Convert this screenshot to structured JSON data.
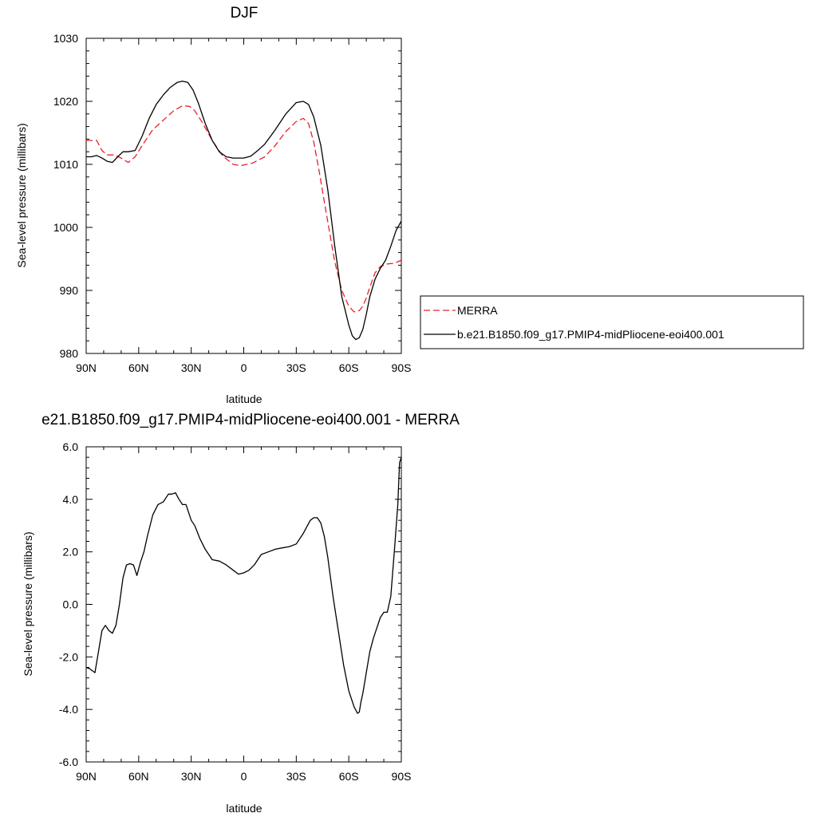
{
  "chart_data": [
    {
      "type": "line",
      "title": "DJF",
      "xlabel": "latitude",
      "ylabel": "Sea-level pressure (millibars)",
      "xlim": [
        90,
        -90
      ],
      "ylim": [
        980,
        1030
      ],
      "x_ticks": [
        90,
        60,
        30,
        0,
        -30,
        -60,
        -90
      ],
      "x_tick_labels": [
        "90N",
        "60N",
        "30N",
        "0",
        "30S",
        "60S",
        "90S"
      ],
      "y_ticks": [
        980,
        990,
        1000,
        1010,
        1020,
        1030
      ],
      "y_tick_labels": [
        "980",
        "990",
        "1000",
        "1010",
        "1020",
        "1030"
      ],
      "legend_position": "right",
      "series": [
        {
          "name": "MERRA",
          "color": "#e8212a",
          "dash": "dashed",
          "x": [
            90,
            84,
            81,
            78,
            74,
            70,
            66,
            62,
            58,
            52,
            46,
            40,
            35,
            31,
            28,
            24,
            18,
            12,
            6,
            2,
            0,
            -5,
            -12,
            -18,
            -24,
            -30,
            -34,
            -37,
            -40,
            -43,
            -47,
            -52,
            -56,
            -60,
            -63,
            -66,
            -68,
            -70,
            -72,
            -75,
            -78,
            -82,
            -86,
            -90
          ],
          "y": [
            1013.8,
            1013.8,
            1012.2,
            1011.5,
            1011.5,
            1011.0,
            1010.3,
            1011.2,
            1013.0,
            1015.5,
            1017.0,
            1018.5,
            1019.3,
            1019.2,
            1018.5,
            1016.8,
            1013.8,
            1011.3,
            1010.0,
            1009.8,
            1009.9,
            1010.2,
            1011.2,
            1013.0,
            1015.2,
            1016.8,
            1017.3,
            1016.5,
            1013.5,
            1009.0,
            1002.5,
            994.5,
            990.0,
            987.5,
            986.6,
            986.8,
            987.5,
            988.8,
            990.5,
            992.8,
            993.8,
            994.2,
            994.3,
            994.8
          ]
        },
        {
          "name": "b.e21.B1850.f09_g17.PMIP4-midPliocene-eoi400.001",
          "color": "#000000",
          "dash": "solid",
          "x": [
            90,
            87,
            84,
            81,
            78,
            75,
            72,
            69,
            66,
            62,
            58,
            54,
            50,
            46,
            42,
            38,
            35,
            32,
            29,
            26,
            22,
            18,
            14,
            10,
            6,
            3,
            0,
            -4,
            -8,
            -12,
            -18,
            -24,
            -30,
            -34,
            -37,
            -40,
            -44,
            -48,
            -52,
            -56,
            -60,
            -62,
            -64,
            -66,
            -68,
            -70,
            -72,
            -75,
            -78,
            -81,
            -84,
            -87,
            -90
          ],
          "y": [
            1011.2,
            1011.2,
            1011.4,
            1011.0,
            1010.5,
            1010.3,
            1011.2,
            1012.0,
            1012.0,
            1012.2,
            1014.5,
            1017.3,
            1019.5,
            1021.0,
            1022.2,
            1023.0,
            1023.2,
            1023.0,
            1021.8,
            1019.8,
            1016.5,
            1013.8,
            1012.0,
            1011.2,
            1011.0,
            1011.0,
            1011.0,
            1011.3,
            1012.2,
            1013.2,
            1015.5,
            1018.0,
            1019.8,
            1020.0,
            1019.5,
            1017.5,
            1013.0,
            1006.0,
            997.0,
            989.0,
            984.5,
            982.8,
            982.2,
            982.5,
            983.8,
            986.2,
            989.0,
            991.8,
            993.5,
            994.8,
            997.0,
            999.5,
            1001.0
          ]
        }
      ]
    },
    {
      "type": "line",
      "title": "e21.B1850.f09_g17.PMIP4-midPliocene-eoi400.001 - MERRA",
      "xlabel": "latitude",
      "ylabel": "Sea-level pressure (millibars)",
      "xlim": [
        90,
        -90
      ],
      "ylim": [
        -6.0,
        6.0
      ],
      "x_ticks": [
        90,
        60,
        30,
        0,
        -30,
        -60,
        -90
      ],
      "x_tick_labels": [
        "90N",
        "60N",
        "30N",
        "0",
        "30S",
        "60S",
        "90S"
      ],
      "y_ticks": [
        -6,
        -4,
        -2,
        0,
        2,
        4,
        6
      ],
      "y_tick_labels": [
        "-6.0",
        "-4.0",
        "-2.0",
        "0.0",
        "2.0",
        "4.0",
        "6.0"
      ],
      "series": [
        {
          "color": "#000000",
          "dash": "solid",
          "x": [
            90,
            88,
            85,
            83,
            81,
            79,
            77,
            75,
            73,
            71,
            69,
            67,
            65,
            63,
            61,
            59,
            57,
            55,
            52,
            49,
            46,
            43,
            41,
            39,
            37,
            35,
            33,
            30,
            28,
            25,
            22,
            18,
            14,
            10,
            6,
            3,
            0,
            -3,
            -6,
            -10,
            -14,
            -18,
            -22,
            -26,
            -30,
            -34,
            -38,
            -40,
            -42,
            -44,
            -46,
            -48,
            -51,
            -54,
            -57,
            -60,
            -63,
            -65,
            -66,
            -67,
            -68,
            -70,
            -72,
            -74,
            -76,
            -78,
            -80,
            -82,
            -84,
            -86,
            -88,
            -89,
            -90
          ],
          "y": [
            -2.4,
            -2.45,
            -2.6,
            -1.8,
            -1.0,
            -0.8,
            -1.0,
            -1.1,
            -0.8,
            0.0,
            1.0,
            1.5,
            1.55,
            1.5,
            1.1,
            1.6,
            2.0,
            2.6,
            3.4,
            3.8,
            3.9,
            4.2,
            4.2,
            4.25,
            4.0,
            3.8,
            3.8,
            3.2,
            3.0,
            2.5,
            2.1,
            1.7,
            1.65,
            1.5,
            1.3,
            1.15,
            1.2,
            1.3,
            1.5,
            1.9,
            2.0,
            2.1,
            2.15,
            2.2,
            2.3,
            2.7,
            3.2,
            3.3,
            3.3,
            3.1,
            2.6,
            1.8,
            0.3,
            -1.0,
            -2.3,
            -3.3,
            -3.9,
            -4.15,
            -4.1,
            -3.7,
            -3.4,
            -2.6,
            -1.8,
            -1.3,
            -0.9,
            -0.5,
            -0.3,
            -0.3,
            0.3,
            2.0,
            3.8,
            5.4,
            5.6
          ]
        }
      ]
    }
  ]
}
